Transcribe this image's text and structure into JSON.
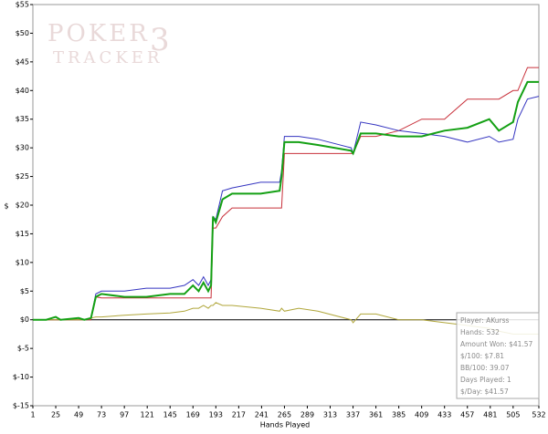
{
  "chart_data": {
    "type": "line",
    "watermark": [
      "POKER",
      "TRACKER",
      "3"
    ],
    "xlabel": "Hands Played",
    "ylabel": "$",
    "xlim": [
      1,
      532
    ],
    "ylim": [
      -15,
      55
    ],
    "xticks": [
      1,
      25,
      49,
      73,
      97,
      121,
      145,
      169,
      193,
      217,
      241,
      265,
      289,
      313,
      337,
      361,
      385,
      409,
      433,
      457,
      481,
      505,
      532
    ],
    "yticks": [
      {
        "value": -15,
        "label": "$-15"
      },
      {
        "value": -10,
        "label": "$-10"
      },
      {
        "value": -5,
        "label": "$-5"
      },
      {
        "value": 0,
        "label": "$0"
      },
      {
        "value": 5,
        "label": "$5"
      },
      {
        "value": 10,
        "label": "$10"
      },
      {
        "value": 15,
        "label": "$15"
      },
      {
        "value": 20,
        "label": "$20"
      },
      {
        "value": 25,
        "label": "$25"
      },
      {
        "value": 30,
        "label": "$30"
      },
      {
        "value": 35,
        "label": "$35"
      },
      {
        "value": 40,
        "label": "$40"
      },
      {
        "value": 45,
        "label": "$45"
      },
      {
        "value": 50,
        "label": "$50"
      },
      {
        "value": 55,
        "label": "$55"
      }
    ],
    "grid": false,
    "x": [
      1,
      15,
      25,
      30,
      49,
      55,
      62,
      67,
      73,
      97,
      120,
      145,
      160,
      169,
      175,
      180,
      185,
      188,
      190,
      193,
      200,
      210,
      240,
      260,
      262,
      265,
      280,
      300,
      335,
      337,
      345,
      361,
      385,
      409,
      433,
      457,
      480,
      490,
      505,
      510,
      520,
      532
    ],
    "series": [
      {
        "color": "#c8303a",
        "values": [
          0,
          0,
          0,
          0,
          0,
          0,
          0,
          4,
          3.8,
          3.8,
          3.8,
          3.8,
          3.8,
          3.8,
          3.8,
          3.8,
          3.8,
          3.8,
          16,
          16,
          18,
          19.5,
          19.5,
          19.5,
          19.5,
          29,
          29,
          29,
          29,
          29,
          32,
          32,
          33,
          35,
          35,
          38.5,
          38.5,
          38.5,
          40,
          40,
          44,
          44
        ]
      },
      {
        "color": "#3434c0",
        "values": [
          0,
          0,
          0.5,
          0,
          0.3,
          0,
          0.3,
          4.5,
          5,
          5,
          5.5,
          5.5,
          6,
          7,
          6,
          7.5,
          6,
          7,
          18,
          17.5,
          22.5,
          23,
          24,
          24,
          26,
          32,
          32,
          31.5,
          30,
          29,
          34.5,
          34,
          33,
          32.5,
          32,
          31,
          32,
          31,
          31.5,
          35,
          38.5,
          39
        ]
      },
      {
        "color": "#b0a63a",
        "values": [
          0,
          0,
          0,
          0,
          0,
          0,
          0.3,
          0.5,
          0.5,
          0.8,
          1,
          1.2,
          1.5,
          2,
          2,
          2.5,
          2,
          2.5,
          2.5,
          3,
          2.5,
          2.5,
          2,
          1.5,
          2,
          1.5,
          2,
          1.5,
          0,
          -0.5,
          1,
          1,
          0,
          0,
          -0.5,
          -1,
          -1.5,
          -2,
          -2.5,
          -2.5,
          -2.5,
          -2.5
        ]
      },
      {
        "color": "#14a014",
        "values": [
          0,
          0,
          0.5,
          0,
          0.3,
          0,
          0.3,
          4,
          4.5,
          4,
          4,
          4.5,
          4.5,
          6,
          5,
          6.5,
          5,
          6,
          18,
          17,
          21,
          22,
          22,
          22.5,
          25,
          31,
          31,
          30.5,
          29.5,
          29,
          32.5,
          32.5,
          32,
          32,
          33,
          33.5,
          35,
          33,
          34.5,
          38,
          41.5,
          41.5
        ]
      }
    ],
    "info": [
      "Player: AKurss",
      "Hands: 532",
      "Amount Won: $41.57",
      "$/100: $7.81",
      "BB/100: 39.07",
      "Days Played: 1",
      "$/Day: $41.57"
    ]
  }
}
